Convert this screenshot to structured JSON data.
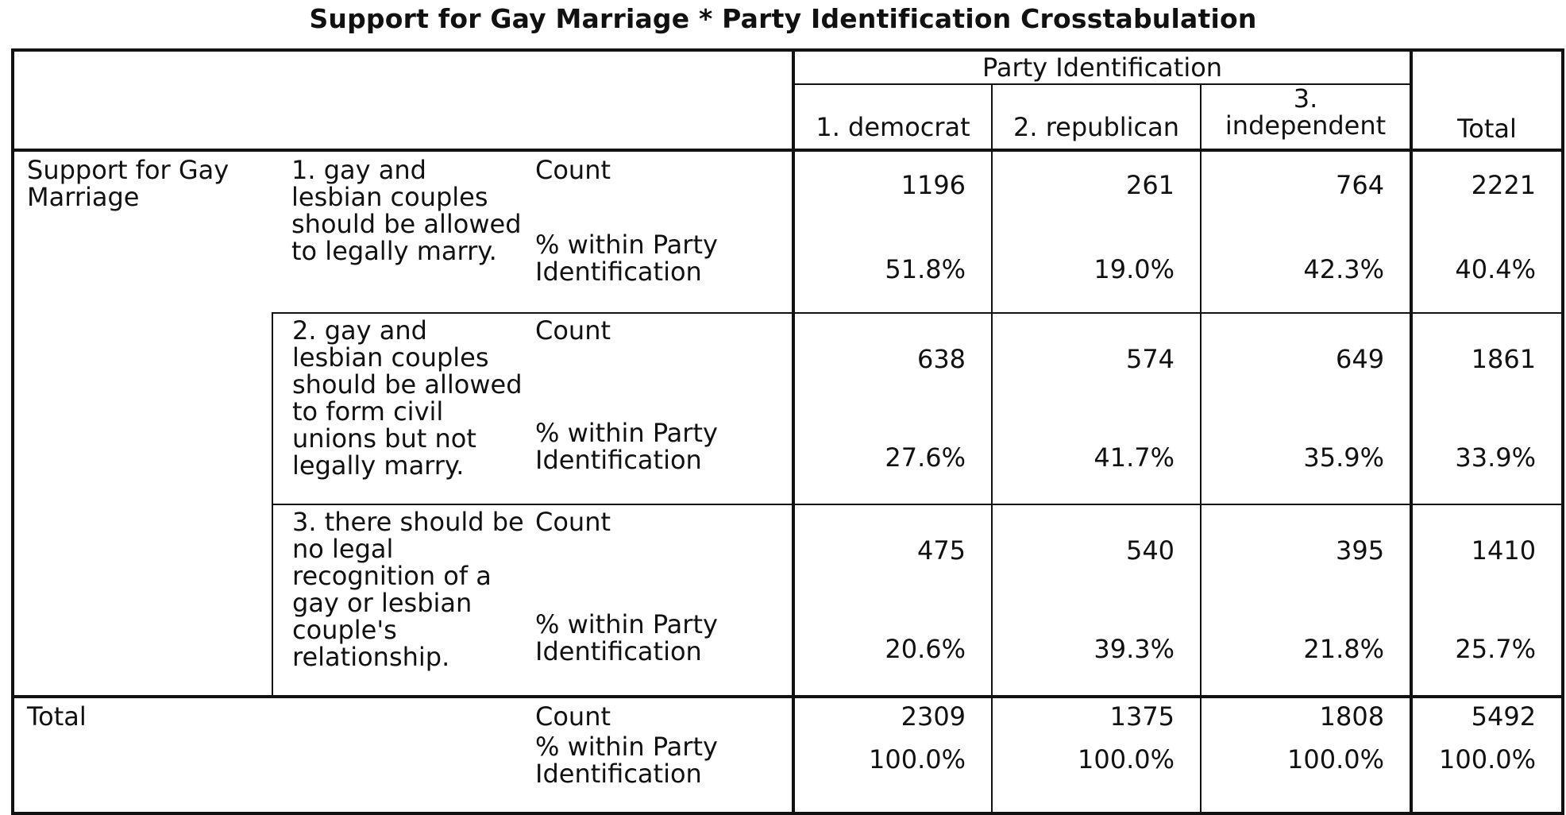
{
  "title": "Support for Gay Marriage * Party Identification Crosstabulation",
  "column_group_label": "Party Identification",
  "columns": [
    "1. democrat",
    "2. republican",
    "3. independent",
    "Total"
  ],
  "row_variable": "Support for Gay Marriage",
  "statistics": {
    "count": "Count",
    "pct": "% within Party Identification"
  },
  "rows": [
    {
      "category": "1. gay and lesbian couples should be allowed to legally marry.",
      "count": [
        "1196",
        "261",
        "764",
        "2221"
      ],
      "pct": [
        "51.8%",
        "19.0%",
        "42.3%",
        "40.4%"
      ]
    },
    {
      "category": "2. gay and lesbian couples should be allowed to form civil unions but not legally marry.",
      "count": [
        "638",
        "574",
        "649",
        "1861"
      ],
      "pct": [
        "27.6%",
        "41.7%",
        "35.9%",
        "33.9%"
      ]
    },
    {
      "category": "3. there should be no legal recognition of a gay or lesbian couple's relationship.",
      "count": [
        "475",
        "540",
        "395",
        "1410"
      ],
      "pct": [
        "20.6%",
        "39.3%",
        "21.8%",
        "25.7%"
      ]
    }
  ],
  "total": {
    "label": "Total",
    "count": [
      "2309",
      "1375",
      "1808",
      "5492"
    ],
    "pct": [
      "100.0%",
      "100.0%",
      "100.0%",
      "100.0%"
    ]
  }
}
